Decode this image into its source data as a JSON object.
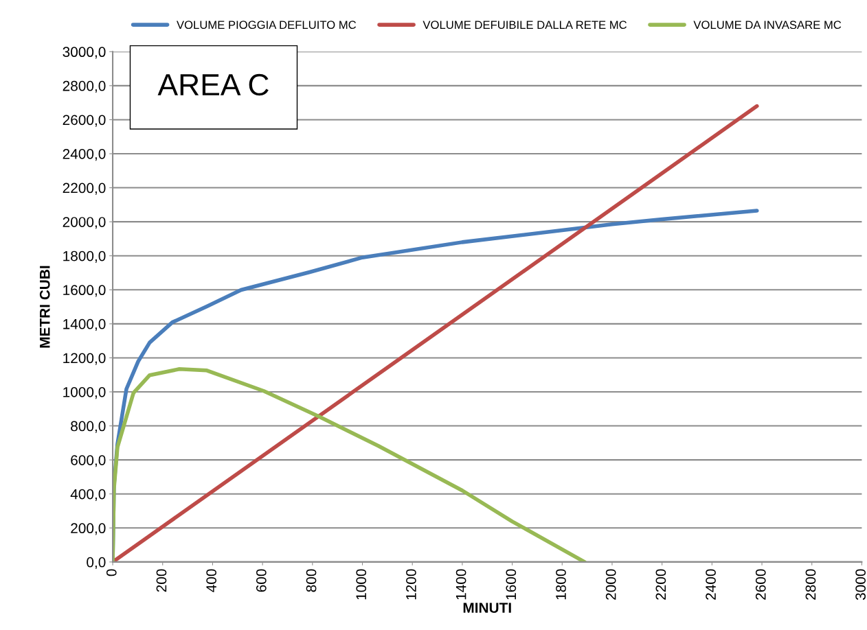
{
  "chart_data": {
    "type": "line",
    "xlabel": "MINUTI",
    "ylabel": "METRI CUBI",
    "annotations": [
      "AREA C"
    ],
    "xlim": [
      0,
      3000
    ],
    "xticks": [
      0,
      200,
      400,
      600,
      800,
      1000,
      1200,
      1400,
      1600,
      1800,
      2000,
      2200,
      2400,
      2600,
      2800,
      3000
    ],
    "ylim": [
      0,
      3000
    ],
    "yticks": [
      {
        "value": 0,
        "label": "0,0"
      },
      {
        "value": 200,
        "label": "200,0"
      },
      {
        "value": 400,
        "label": "400,0"
      },
      {
        "value": 600,
        "label": "600,0"
      },
      {
        "value": 800,
        "label": "800,0"
      },
      {
        "value": 1000,
        "label": "1000,0"
      },
      {
        "value": 1200,
        "label": "1200,0"
      },
      {
        "value": 1400,
        "label": "1400,0"
      },
      {
        "value": 1600,
        "label": "1600,0"
      },
      {
        "value": 1800,
        "label": "1800,0"
      },
      {
        "value": 2000,
        "label": "2000,0"
      },
      {
        "value": 2200,
        "label": "2200,0"
      },
      {
        "value": 2400,
        "label": "2400,0"
      },
      {
        "value": 2600,
        "label": "2600,0"
      },
      {
        "value": 2800,
        "label": "2800,0"
      },
      {
        "value": 3000,
        "label": "3000,0"
      }
    ],
    "grid": "y",
    "legend": "top",
    "marker": "none",
    "line_style": "solid",
    "series": [
      {
        "name": "VOLUME PIOGGIA DEFLUITO MC",
        "color": "#4a7ebb",
        "x": [
          0,
          5,
          19,
          55,
          102,
          148,
          239,
          377,
          514,
          789,
          1000,
          1400,
          1800,
          2000,
          2200,
          2580
        ],
        "values": [
          0,
          450,
          694,
          1017,
          1179,
          1290,
          1409,
          1502,
          1599,
          1704,
          1790,
          1880,
          1950,
          1985,
          2015,
          2065
        ]
      },
      {
        "name": "VOLUME DEFUIBILE DALLA RETE MC",
        "color": "#be4b48",
        "x": [
          0,
          2580
        ],
        "values": [
          0,
          2680
        ]
      },
      {
        "name": "VOLUME DA INVASARE MC",
        "color": "#98b954",
        "x": [
          0,
          5,
          19,
          83,
          148,
          267,
          377,
          605,
          825,
          1064,
          1400,
          1600,
          1890
        ],
        "values": [
          0,
          430,
          674,
          993,
          1098,
          1134,
          1126,
          1005,
          856,
          682,
          420,
          238,
          0
        ]
      }
    ]
  }
}
